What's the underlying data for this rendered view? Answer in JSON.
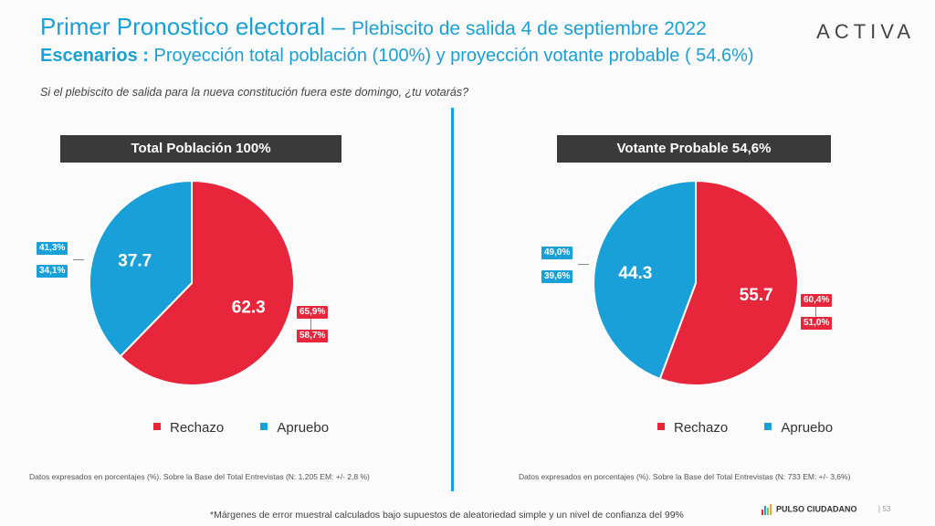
{
  "header": {
    "title_main": "Primer Pronostico electoral",
    "title_dash": " – ",
    "title_sub": "Plebiscito de salida 4 de septiembre 2022",
    "subtitle_bold": "Escenarios :",
    "subtitle_rest": " Proyección total población (100%) y proyección votante probable ( 54.6%)",
    "brand": "ACTIVA",
    "question": "Si el plebiscito de salida para la nueva constitución fuera este domingo, ¿tu votarás?"
  },
  "colors": {
    "rechazo": "#e8263b",
    "apruebo": "#1aa0d8"
  },
  "chart_data": [
    {
      "type": "pie",
      "title": "Total Población 100%",
      "series": [
        {
          "name": "Rechazo",
          "value": 62.3,
          "label": "62.3",
          "range_high": "65,9%",
          "range_low": "58,7%"
        },
        {
          "name": "Apruebo",
          "value": 37.7,
          "label": "37.7",
          "range_high": "41,3%",
          "range_low": "34,1%"
        }
      ],
      "legend": [
        "Rechazo",
        "Apruebo"
      ],
      "legend_position": "bottom",
      "footnote": "Datos expresados en porcentajes (%). Sobre la Base del Total Entrevistas (N: 1.205  EM: +/- 2,8 %)"
    },
    {
      "type": "pie",
      "title": "Votante Probable 54,6%",
      "series": [
        {
          "name": "Rechazo",
          "value": 55.7,
          "label": "55.7",
          "range_high": "60,4%",
          "range_low": "51,0%"
        },
        {
          "name": "Apruebo",
          "value": 44.3,
          "label": "44.3",
          "range_high": "49,0%",
          "range_low": "39,6%"
        }
      ],
      "legend": [
        "Rechazo",
        "Apruebo"
      ],
      "legend_position": "bottom",
      "footnote": "Datos expresados en porcentajes (%). Sobre la Base del Total Entrevistas (N: 733  EM: +/- 3,6%)"
    }
  ],
  "footer": {
    "note": "*Márgenes de error muestral calculados bajo supuestos de aleatoriedad simple y un nivel de confianza del 99%",
    "pulso": "PULSO CIUDADANO",
    "separator": "|",
    "page": "53"
  }
}
